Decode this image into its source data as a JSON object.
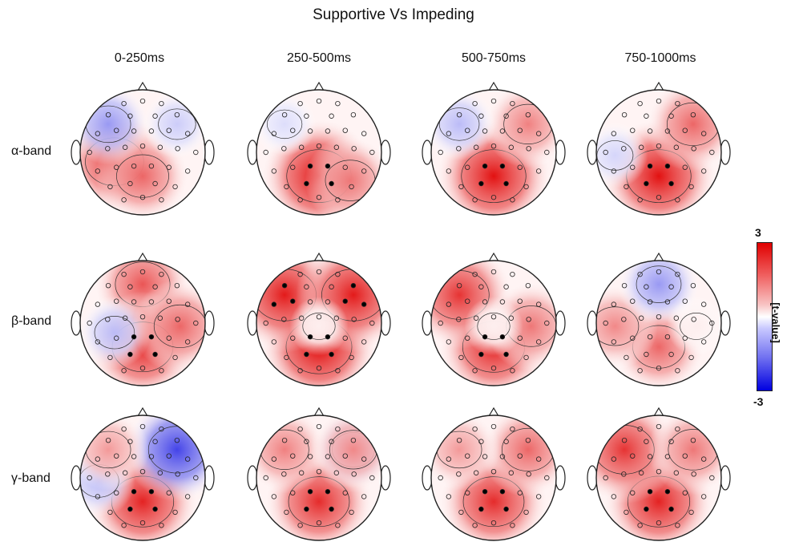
{
  "title": "Supportive Vs Impeding",
  "columns": [
    "0-250ms",
    "250-500ms",
    "500-750ms",
    "750-1000ms"
  ],
  "rows": [
    "α-band",
    "β-band",
    "γ-band"
  ],
  "colorbar": {
    "max": "3",
    "min": "-3",
    "label": "[t-value]",
    "colors": {
      "positive": "#e00000",
      "zero": "#ffffff",
      "negative": "#0000e0"
    }
  },
  "maps": [
    [
      {
        "blobs": [
          {
            "t": 2.3,
            "at": "left-center"
          },
          {
            "t": 1.8,
            "at": "center-back"
          },
          {
            "t": -1.2,
            "at": "left-front"
          },
          {
            "t": -0.6,
            "at": "right-front"
          }
        ]
      },
      {
        "blobs": [
          {
            "t": 2.8,
            "at": "center-back"
          },
          {
            "t": 1.6,
            "at": "right-back"
          },
          {
            "t": -0.4,
            "at": "left-front"
          }
        ]
      },
      {
        "blobs": [
          {
            "t": 2.8,
            "at": "center-back"
          },
          {
            "t": 1.5,
            "at": "right-front"
          },
          {
            "t": -0.8,
            "at": "left-front"
          }
        ]
      },
      {
        "blobs": [
          {
            "t": 2.8,
            "at": "center-back"
          },
          {
            "t": 1.8,
            "at": "right-front"
          },
          {
            "t": -0.5,
            "at": "left"
          }
        ]
      }
    ],
    [
      {
        "blobs": [
          {
            "t": 2.0,
            "at": "front"
          },
          {
            "t": 2.5,
            "at": "center-back"
          },
          {
            "t": -0.8,
            "at": "left-center"
          },
          {
            "t": 1.8,
            "at": "right"
          }
        ]
      },
      {
        "blobs": [
          {
            "t": 2.9,
            "at": "center-back"
          },
          {
            "t": 2.7,
            "at": "left-front"
          },
          {
            "t": 2.7,
            "at": "right-front"
          },
          {
            "t": 0.2,
            "at": "center"
          }
        ]
      },
      {
        "blobs": [
          {
            "t": 2.6,
            "at": "center-back"
          },
          {
            "t": 2.4,
            "at": "left-front"
          },
          {
            "t": 1.6,
            "at": "right"
          },
          {
            "t": 0.2,
            "at": "center"
          }
        ]
      },
      {
        "blobs": [
          {
            "t": 1.8,
            "at": "center-back"
          },
          {
            "t": 1.4,
            "at": "left"
          },
          {
            "t": -1.2,
            "at": "front"
          },
          {
            "t": 0.2,
            "at": "right"
          }
        ]
      }
    ],
    [
      {
        "blobs": [
          {
            "t": 2.6,
            "at": "center-back"
          },
          {
            "t": -2.2,
            "at": "right-front"
          },
          {
            "t": -0.8,
            "at": "left"
          },
          {
            "t": 1.2,
            "at": "left-front"
          }
        ]
      },
      {
        "blobs": [
          {
            "t": 2.5,
            "at": "center-back"
          },
          {
            "t": -1.0,
            "at": "right-front"
          },
          {
            "t": 1.5,
            "at": "left-front"
          },
          {
            "t": 1.4,
            "at": "right-front"
          }
        ]
      },
      {
        "blobs": [
          {
            "t": 2.5,
            "at": "center-back"
          },
          {
            "t": 1.8,
            "at": "right-front"
          },
          {
            "t": 1.2,
            "at": "left-front"
          }
        ]
      },
      {
        "blobs": [
          {
            "t": 2.6,
            "at": "center-back"
          },
          {
            "t": 2.4,
            "at": "left-front"
          },
          {
            "t": 1.6,
            "at": "right-front"
          }
        ]
      }
    ]
  ]
}
